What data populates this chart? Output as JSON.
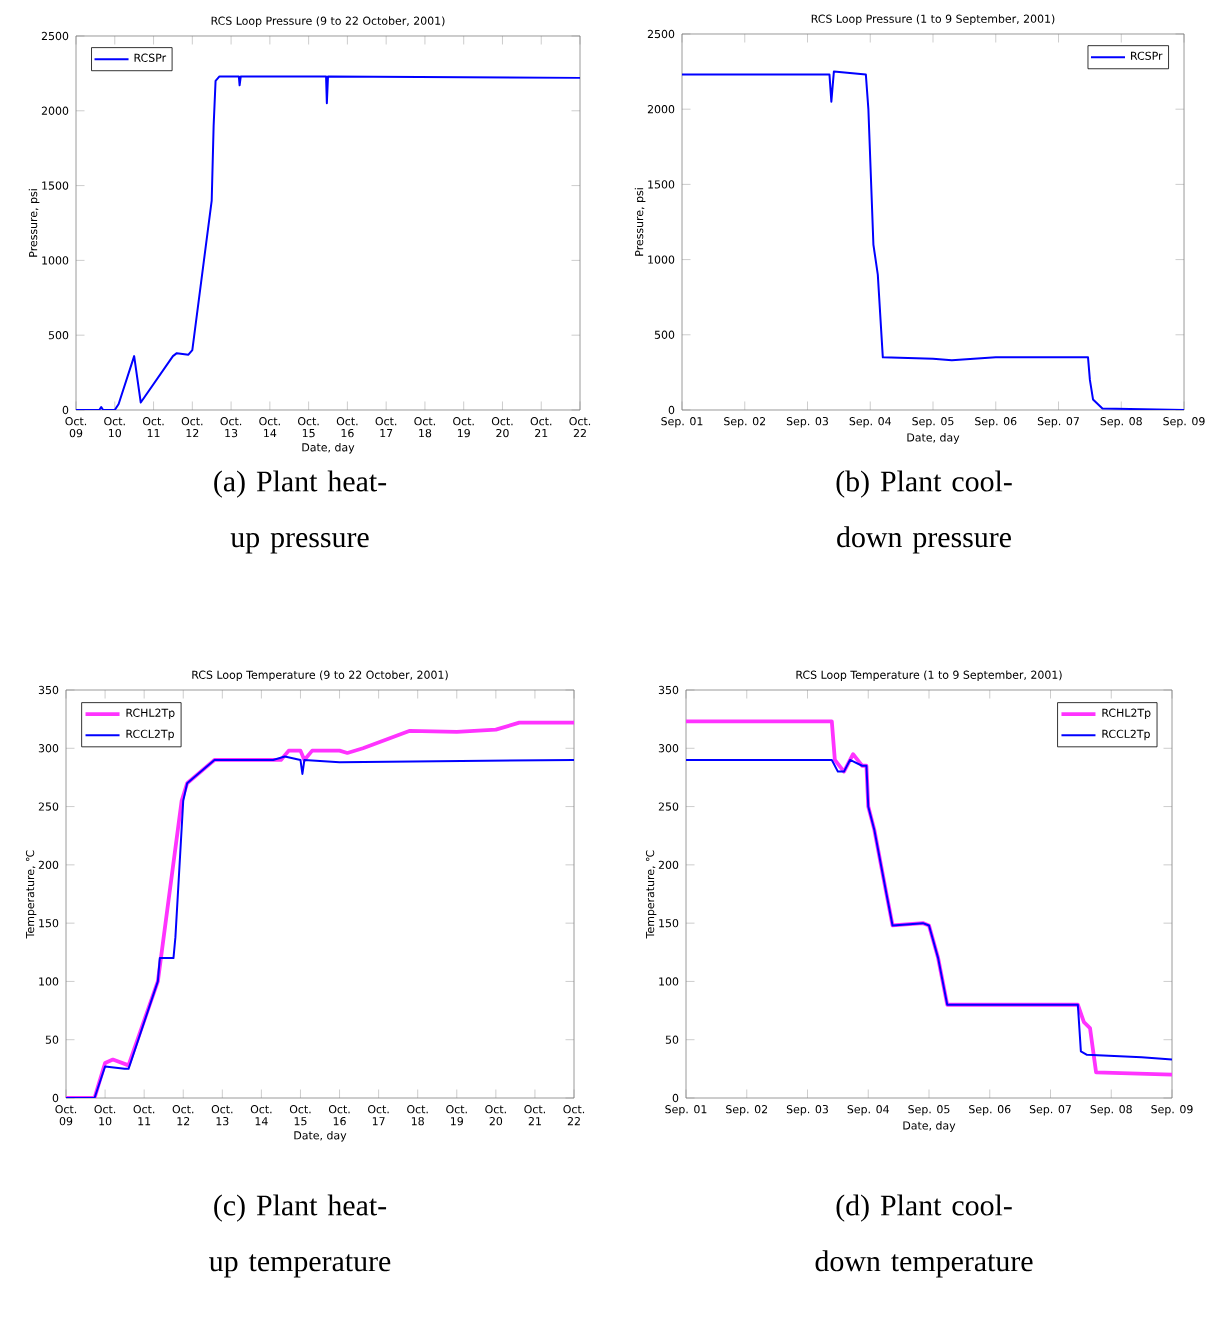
{
  "chart_data": [
    {
      "type": "line",
      "title": "RCS Loop Pressure (9 to 22 October, 2001)",
      "xlabel": "Date, day",
      "ylabel": "Pressure, psi",
      "annotations": [
        "(a) Plant heat-up pressure"
      ],
      "legend": "top left",
      "xlim": [
        "2001-10-09",
        "2001-10-22"
      ],
      "ylim": [
        0,
        2500
      ],
      "xticks": [
        {
          "value": "2001-10-09",
          "label": "Oct. 09"
        },
        {
          "value": "2001-10-10",
          "label": "Oct. 10"
        },
        {
          "value": "2001-10-11",
          "label": "Oct. 11"
        },
        {
          "value": "2001-10-12",
          "label": "Oct. 12"
        },
        {
          "value": "2001-10-13",
          "label": "Oct. 13"
        },
        {
          "value": "2001-10-14",
          "label": "Oct. 14"
        },
        {
          "value": "2001-10-15",
          "label": "Oct. 15"
        },
        {
          "value": "2001-10-16",
          "label": "Oct. 16"
        },
        {
          "value": "2001-10-17",
          "label": "Oct. 17"
        },
        {
          "value": "2001-10-18",
          "label": "Oct. 18"
        },
        {
          "value": "2001-10-19",
          "label": "Oct. 19"
        },
        {
          "value": "2001-10-20",
          "label": "Oct. 20"
        },
        {
          "value": "2001-10-21",
          "label": "Oct. 21"
        },
        {
          "value": "2001-10-22",
          "label": "Oct. 22"
        }
      ],
      "yticks": [
        0,
        500,
        1000,
        1500,
        2000,
        2500
      ],
      "series": [
        {
          "name": "RCSPr",
          "color": "#0000ff",
          "x": [
            "2001-10-09T00:00",
            "2001-10-09T14:24",
            "2001-10-09T15:36",
            "2001-10-09T16:48",
            "2001-10-10T00:00",
            "2001-10-10T02:24",
            "2001-10-10T12:00",
            "2001-10-10T16:05",
            "2001-10-11T12:00",
            "2001-10-11T14:24",
            "2001-10-11T21:36",
            "2001-10-12T00:00",
            "2001-10-12T12:00",
            "2001-10-12T13:12",
            "2001-10-12T14:24",
            "2001-10-12T16:48",
            "2001-10-13T04:48",
            "2001-10-13T05:17",
            "2001-10-13T06:00",
            "2001-10-15T10:48",
            "2001-10-15T11:17",
            "2001-10-15T12:00",
            "2001-10-22T00:00"
          ],
          "values": [
            0,
            0,
            20,
            0,
            0,
            40,
            360,
            50,
            360,
            380,
            370,
            400,
            1400,
            1900,
            2200,
            2230,
            2230,
            2170,
            2230,
            2230,
            2050,
            2230,
            2220
          ]
        }
      ]
    },
    {
      "type": "line",
      "title": "RCS Loop Pressure (1 to 9 September, 2001)",
      "xlabel": "Date, day",
      "ylabel": "Pressure, psi",
      "annotations": [
        "(b) Plant cool-down pressure"
      ],
      "legend": "top right",
      "xlim": [
        "2001-09-01",
        "2001-09-09"
      ],
      "ylim": [
        0,
        2500
      ],
      "xticks": [
        {
          "value": "2001-09-01",
          "label": "Sep. 01"
        },
        {
          "value": "2001-09-02",
          "label": "Sep. 02"
        },
        {
          "value": "2001-09-03",
          "label": "Sep. 03"
        },
        {
          "value": "2001-09-04",
          "label": "Sep. 04"
        },
        {
          "value": "2001-09-05",
          "label": "Sep. 05"
        },
        {
          "value": "2001-09-06",
          "label": "Sep. 06"
        },
        {
          "value": "2001-09-07",
          "label": "Sep. 07"
        },
        {
          "value": "2001-09-08",
          "label": "Sep. 08"
        },
        {
          "value": "2001-09-09",
          "label": "Sep. 09"
        }
      ],
      "yticks": [
        0,
        500,
        1000,
        1500,
        2000,
        2500
      ],
      "series": [
        {
          "name": "RCSPr",
          "color": "#0000ff",
          "x": [
            "2001-09-01T00:00",
            "2001-09-03T08:24",
            "2001-09-03T09:07",
            "2001-09-03T10:05",
            "2001-09-03T22:19",
            "2001-09-03T23:17",
            "2001-09-04T01:12",
            "2001-09-04T02:53",
            "2001-09-04T04:48",
            "2001-09-05T00:00",
            "2001-09-05T07:12",
            "2001-09-06T00:00",
            "2001-09-07T11:17",
            "2001-09-07T12:00",
            "2001-09-07T13:12",
            "2001-09-07T16:48",
            "2001-09-09T00:00"
          ],
          "values": [
            2230,
            2230,
            2050,
            2250,
            2230,
            2000,
            1100,
            900,
            350,
            340,
            330,
            350,
            350,
            200,
            70,
            10,
            0
          ]
        }
      ]
    },
    {
      "type": "line",
      "title": "RCS Loop Temperature (9 to 22 October, 2001)",
      "xlabel": "Date, day",
      "ylabel": "Temperature, ℃",
      "annotations": [
        "(c) Plant heat-up temperature"
      ],
      "legend": "top left",
      "xlim": [
        "2001-10-09",
        "2001-10-22"
      ],
      "ylim": [
        0,
        350
      ],
      "xticks": [
        {
          "value": "2001-10-09",
          "label": "Oct. 09"
        },
        {
          "value": "2001-10-10",
          "label": "Oct. 10"
        },
        {
          "value": "2001-10-11",
          "label": "Oct. 11"
        },
        {
          "value": "2001-10-12",
          "label": "Oct. 12"
        },
        {
          "value": "2001-10-13",
          "label": "Oct. 13"
        },
        {
          "value": "2001-10-14",
          "label": "Oct. 14"
        },
        {
          "value": "2001-10-15",
          "label": "Oct. 15"
        },
        {
          "value": "2001-10-16",
          "label": "Oct. 16"
        },
        {
          "value": "2001-10-17",
          "label": "Oct. 17"
        },
        {
          "value": "2001-10-18",
          "label": "Oct. 18"
        },
        {
          "value": "2001-10-19",
          "label": "Oct. 19"
        },
        {
          "value": "2001-10-20",
          "label": "Oct. 20"
        },
        {
          "value": "2001-10-21",
          "label": "Oct. 21"
        },
        {
          "value": "2001-10-22",
          "label": "Oct. 22"
        }
      ],
      "yticks": [
        0,
        50,
        100,
        150,
        200,
        250,
        300,
        350
      ],
      "series": [
        {
          "name": "RCHL2Tp",
          "color": "#ff33ff",
          "x": [
            "2001-10-09T00:00",
            "2001-10-09T17:31",
            "2001-10-10T00:00",
            "2001-10-10T04:48",
            "2001-10-10T14:24",
            "2001-10-11T08:24",
            "2001-10-11T23:02",
            "2001-10-12T02:24",
            "2001-10-12T19:12",
            "2001-10-14T12:00",
            "2001-10-14T16:48",
            "2001-10-15T00:00",
            "2001-10-15T02:24",
            "2001-10-15T07:12",
            "2001-10-16T00:00",
            "2001-10-16T04:48",
            "2001-10-16T14:24",
            "2001-10-17T19:12",
            "2001-10-19T00:00",
            "2001-10-20T00:00",
            "2001-10-20T14:24",
            "2001-10-22T00:00"
          ],
          "values": [
            0,
            0,
            30,
            33,
            28,
            100,
            255,
            270,
            290,
            290,
            298,
            298,
            290,
            298,
            298,
            296,
            300,
            315,
            314,
            316,
            322,
            322
          ]
        },
        {
          "name": "RCCL2Tp",
          "color": "#0000ff",
          "x": [
            "2001-10-09T00:00",
            "2001-10-09T17:31",
            "2001-10-10T00:00",
            "2001-10-10T12:00",
            "2001-10-10T14:24",
            "2001-10-11T08:24",
            "2001-10-11T09:36",
            "2001-10-11T18:00",
            "2001-10-11T19:12",
            "2001-10-12T00:00",
            "2001-10-12T02:24",
            "2001-10-12T19:12",
            "2001-10-14T07:12",
            "2001-10-14T14:24",
            "2001-10-15T00:00",
            "2001-10-15T01:12",
            "2001-10-15T02:24",
            "2001-10-16T00:00",
            "2001-10-22T00:00"
          ],
          "values": [
            0,
            0,
            27,
            25,
            25,
            100,
            120,
            120,
            138,
            255,
            270,
            290,
            290,
            293,
            290,
            278,
            290,
            288,
            290
          ]
        }
      ]
    },
    {
      "type": "line",
      "title": "RCS Loop Temperature (1 to 9 September, 2001)",
      "xlabel": "Date, day",
      "ylabel": "Temperature, ℃",
      "annotations": [
        "(d) Plant cool-down temperature"
      ],
      "legend": "top right",
      "xlim": [
        "2001-09-01",
        "2001-09-09"
      ],
      "ylim": [
        0,
        350
      ],
      "xticks": [
        {
          "value": "2001-09-01",
          "label": "Sep. 01"
        },
        {
          "value": "2001-09-02",
          "label": "Sep. 02"
        },
        {
          "value": "2001-09-03",
          "label": "Sep. 03"
        },
        {
          "value": "2001-09-04",
          "label": "Sep. 04"
        },
        {
          "value": "2001-09-05",
          "label": "Sep. 05"
        },
        {
          "value": "2001-09-06",
          "label": "Sep. 06"
        },
        {
          "value": "2001-09-07",
          "label": "Sep. 07"
        },
        {
          "value": "2001-09-08",
          "label": "Sep. 08"
        },
        {
          "value": "2001-09-09",
          "label": "Sep. 09"
        }
      ],
      "yticks": [
        0,
        50,
        100,
        150,
        200,
        250,
        300,
        350
      ],
      "series": [
        {
          "name": "RCHL2Tp",
          "color": "#ff33ff",
          "x": [
            "2001-09-01T00:00",
            "2001-09-03T09:36",
            "2001-09-03T10:48",
            "2001-09-03T14:24",
            "2001-09-03T18:00",
            "2001-09-03T21:36",
            "2001-09-03T23:17",
            "2001-09-04T00:00",
            "2001-09-04T02:24",
            "2001-09-04T07:12",
            "2001-09-04T09:36",
            "2001-09-04T21:36",
            "2001-09-05T00:00",
            "2001-09-05T03:36",
            "2001-09-05T07:12",
            "2001-09-07T10:48",
            "2001-09-07T13:12",
            "2001-09-07T15:36",
            "2001-09-07T18:00",
            "2001-09-09T00:00"
          ],
          "values": [
            323,
            323,
            290,
            280,
            295,
            285,
            285,
            250,
            230,
            175,
            148,
            150,
            148,
            120,
            80,
            80,
            65,
            60,
            22,
            20
          ]
        },
        {
          "name": "RCCL2Tp",
          "color": "#0000ff",
          "x": [
            "2001-09-01T00:00",
            "2001-09-03T09:36",
            "2001-09-03T12:00",
            "2001-09-03T14:24",
            "2001-09-03T16:48",
            "2001-09-03T21:36",
            "2001-09-03T23:17",
            "2001-09-04T00:00",
            "2001-09-04T02:24",
            "2001-09-04T07:12",
            "2001-09-04T09:36",
            "2001-09-04T21:36",
            "2001-09-05T00:00",
            "2001-09-05T03:36",
            "2001-09-05T07:12",
            "2001-09-07T10:48",
            "2001-09-07T12:00",
            "2001-09-07T14:24",
            "2001-09-08T12:00",
            "2001-09-09T00:00"
          ],
          "values": [
            290,
            290,
            280,
            280,
            290,
            285,
            285,
            250,
            230,
            175,
            148,
            150,
            148,
            120,
            80,
            80,
            40,
            37,
            35,
            33
          ]
        }
      ]
    }
  ]
}
